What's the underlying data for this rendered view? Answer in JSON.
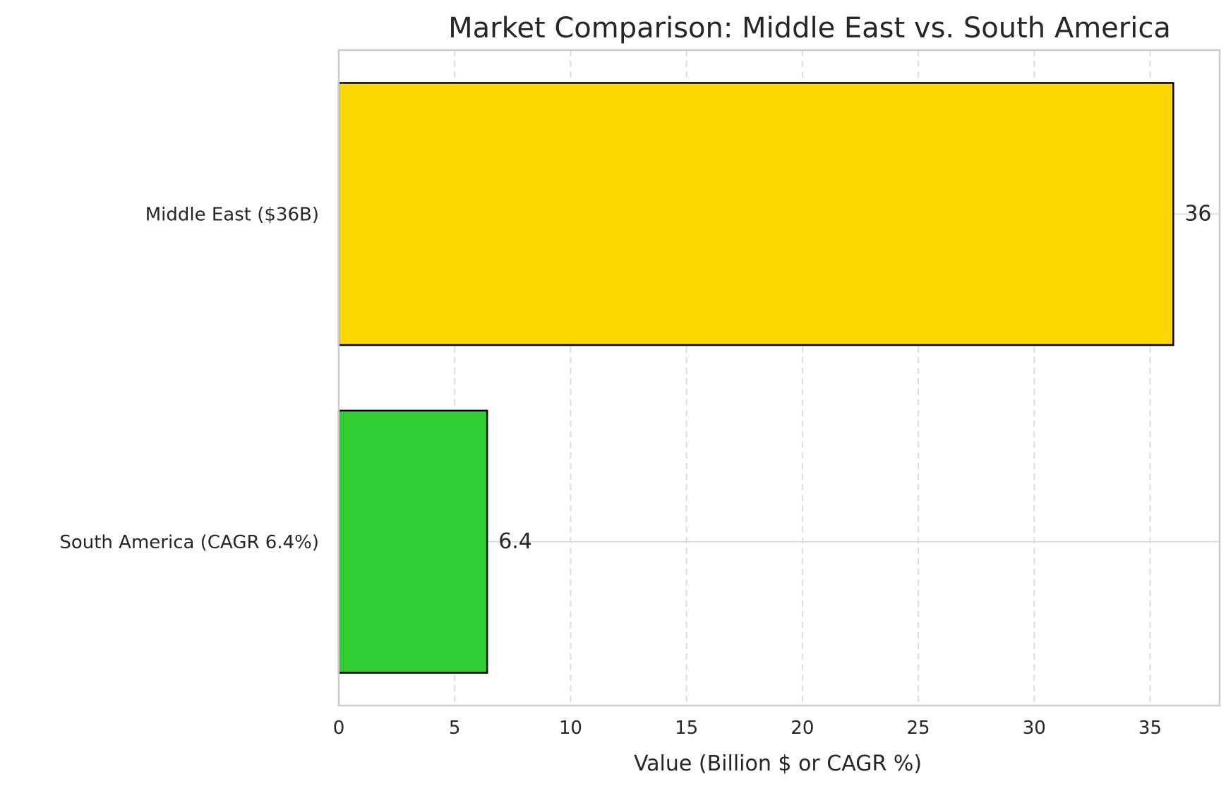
{
  "chart_data": {
    "type": "bar",
    "orientation": "horizontal",
    "title": "Market Comparison: Middle East vs. South America",
    "xlabel": "Value (Billion $ or CAGR %)",
    "ylabel": "",
    "xlim": [
      0,
      38
    ],
    "xticks": [
      0,
      5,
      10,
      15,
      20,
      25,
      30,
      35
    ],
    "categories": [
      "South America (CAGR 6.4%)",
      "Middle East ($36B)"
    ],
    "values": [
      6.4,
      36
    ],
    "data_labels": [
      "6.4",
      "36"
    ],
    "colors": [
      "#32CD32",
      "#FFD700"
    ],
    "grid": true,
    "legend": "none"
  }
}
